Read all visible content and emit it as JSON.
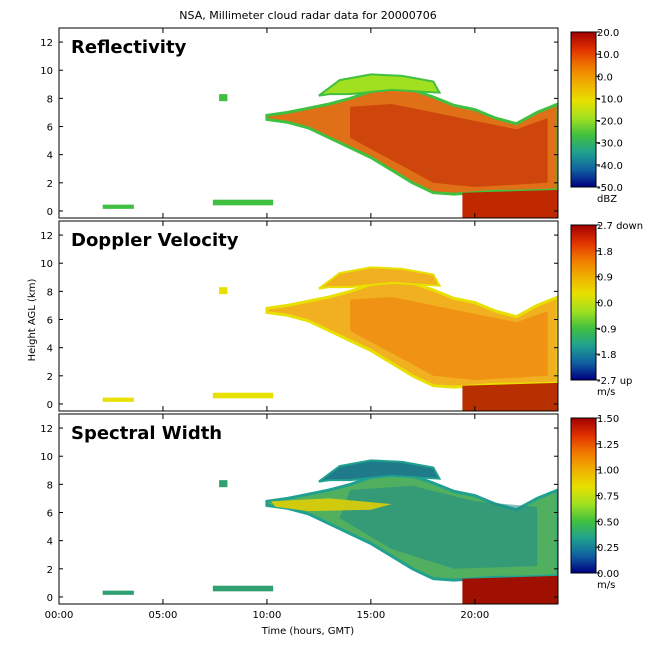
{
  "chart_data": {
    "type": "heatmap",
    "title": "NSA, Millimeter cloud radar data for 20000706",
    "xlabel": "Time (hours, GMT)",
    "ylabel": "Height AGL (km)",
    "x_ticks": [
      "00:00",
      "05:00",
      "10:00",
      "15:00",
      "20:00"
    ],
    "x_tick_hours": [
      0,
      5,
      10,
      15,
      20
    ],
    "xlim_hours": [
      0,
      24
    ],
    "y_ticks": [
      0,
      2,
      4,
      6,
      8,
      10,
      12
    ],
    "ylim_km": [
      -0.5,
      13
    ],
    "panels": [
      {
        "name": "Reflectivity",
        "colorbar_ticks": [
          "20.0",
          "10.0",
          "0.0",
          "-10.0",
          "-20.0",
          "-30.0",
          "-40.0",
          "-50.0"
        ],
        "colorbar_unit": "dBZ",
        "cmap": [
          "#a00000",
          "#e03000",
          "#f07800",
          "#f0b000",
          "#e8e000",
          "#a0e020",
          "#40c040",
          "#20a090",
          "#1060a0",
          "#000080"
        ]
      },
      {
        "name": "Doppler Velocity",
        "colorbar_ticks": [
          "2.7 down",
          "1.8",
          "0.9",
          "0.0",
          "-0.9",
          "-1.8",
          "-2.7 up"
        ],
        "colorbar_unit": "m/s",
        "cmap": [
          "#a00000",
          "#e03000",
          "#f07800",
          "#f0b000",
          "#e8e000",
          "#a0e020",
          "#40c040",
          "#20a090",
          "#1060a0",
          "#000080"
        ]
      },
      {
        "name": "Spectral Width",
        "colorbar_ticks": [
          "1.50",
          "1.25",
          "1.00",
          "0.75",
          "0.50",
          "0.25",
          "0.00"
        ],
        "colorbar_unit": "m/s",
        "cmap": [
          "#a00000",
          "#e03000",
          "#f07800",
          "#f0b000",
          "#e8e000",
          "#a0e020",
          "#40c040",
          "#20a090",
          "#1060a0",
          "#000080"
        ]
      }
    ]
  }
}
